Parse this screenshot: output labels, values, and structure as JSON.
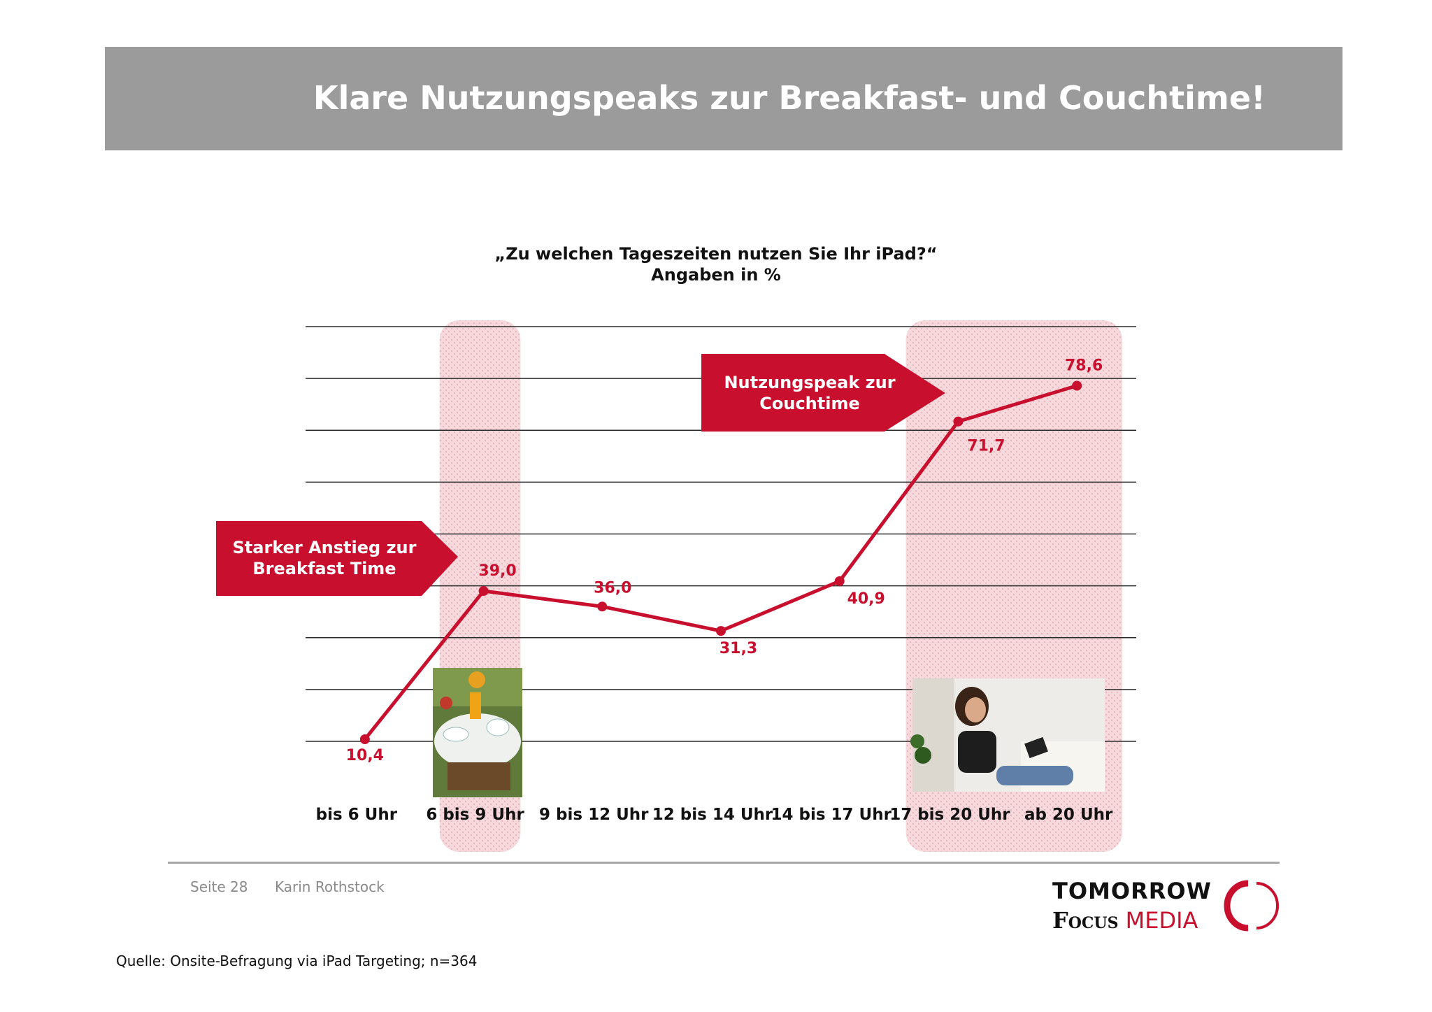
{
  "header": {
    "title": "Klare Nutzungspeaks zur Breakfast- und Couchtime!"
  },
  "chart_data": {
    "type": "line",
    "title": "„Zu welchen Tageszeiten nutzen Sie Ihr iPad?“",
    "subtitle": "Angaben in %",
    "categories": [
      "bis 6 Uhr",
      "6 bis 9 Uhr",
      "9 bis 12 Uhr",
      "12 bis 14 Uhr",
      "14 bis 17 Uhr",
      "17 bis 20 Uhr",
      "ab 20 Uhr"
    ],
    "values": [
      10.4,
      39.0,
      36.0,
      31.3,
      40.9,
      71.7,
      78.6
    ],
    "value_labels": [
      "10,4",
      "39,0",
      "36,0",
      "31,3",
      "40,9",
      "71,7",
      "78,6"
    ],
    "ylim": [
      10,
      90
    ],
    "grid": true,
    "highlighted_categories": [
      "6 bis 9 Uhr",
      "17 bis 20 Uhr",
      "ab 20 Uhr"
    ],
    "line_color": "#c8102e",
    "highlight_color": "#f3cfd3"
  },
  "callouts": {
    "breakfast": {
      "line1": "Starker Anstieg zur",
      "line2": "Breakfast Time"
    },
    "couchtime": {
      "line1": "Nutzungspeak zur",
      "line2": "Couchtime"
    }
  },
  "footer": {
    "page": "Seite 28",
    "author": "Karin Rothstock",
    "source": "Quelle: Onsite-Befragung via iPad Targeting; n=364"
  },
  "logo": {
    "line1": "TOMORROW",
    "line2a": "Focus",
    "line2b": "MEDIA"
  },
  "colors": {
    "accent": "#c8102e",
    "header_bg": "#9b9b9b"
  }
}
